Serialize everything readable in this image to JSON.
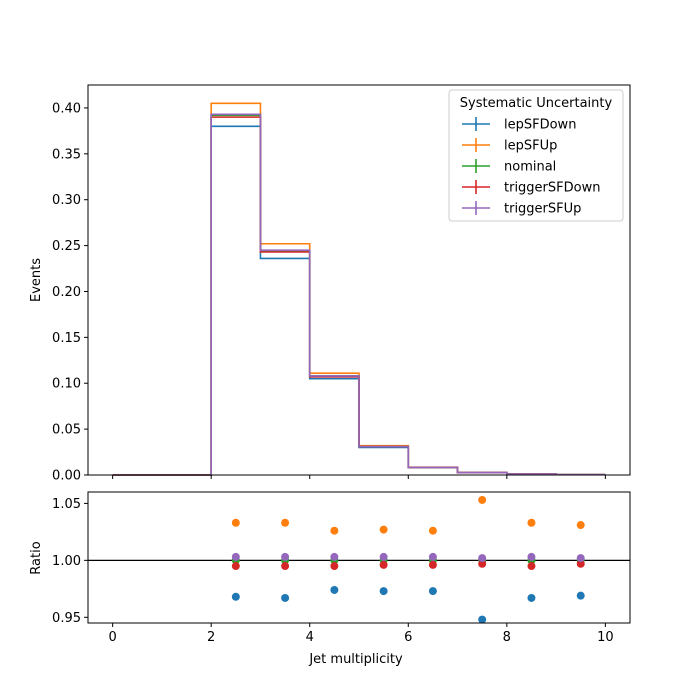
{
  "colors": {
    "lepSFDown": "#1f77b4",
    "lepSFUp": "#ff7f0e",
    "nominal": "#2ca02c",
    "triggerSFDown": "#d62728",
    "triggerSFUp": "#9467bd"
  },
  "chart_data": [
    {
      "type": "line",
      "subtype": "step-histogram",
      "title": "",
      "xlabel": "",
      "ylabel": "Events",
      "bin_edges": [
        0,
        1,
        2,
        3,
        4,
        5,
        6,
        7,
        8,
        9,
        10
      ],
      "xlim": [
        -0.5,
        10.5
      ],
      "ylim": [
        0,
        0.425
      ],
      "yticks": [
        0.0,
        0.05,
        0.1,
        0.15,
        0.2,
        0.25,
        0.3,
        0.35,
        0.4
      ],
      "ytick_labels": [
        "0.00",
        "0.05",
        "0.10",
        "0.15",
        "0.20",
        "0.25",
        "0.30",
        "0.35",
        "0.40"
      ],
      "xticks": [
        0,
        2,
        4,
        6,
        8,
        10
      ],
      "legend": {
        "title": "Systematic Uncertainty",
        "placement": "top-right"
      },
      "series": [
        {
          "name": "lepSFDown",
          "values": [
            0,
            0,
            0.38,
            0.236,
            0.105,
            0.03,
            0.008,
            0.0025,
            0.001,
            0.0003
          ]
        },
        {
          "name": "lepSFUp",
          "values": [
            0,
            0,
            0.405,
            0.252,
            0.111,
            0.032,
            0.0085,
            0.0027,
            0.0011,
            0.0003
          ]
        },
        {
          "name": "nominal",
          "values": [
            0,
            0,
            0.392,
            0.244,
            0.108,
            0.031,
            0.0082,
            0.0026,
            0.001,
            0.0003
          ]
        },
        {
          "name": "triggerSFDown",
          "values": [
            0,
            0,
            0.39,
            0.243,
            0.107,
            0.031,
            0.0082,
            0.0026,
            0.001,
            0.0003
          ]
        },
        {
          "name": "triggerSFUp",
          "values": [
            0,
            0,
            0.393,
            0.245,
            0.108,
            0.031,
            0.0082,
            0.0026,
            0.001,
            0.0003
          ]
        }
      ]
    },
    {
      "type": "scatter",
      "title": "",
      "xlabel": "Jet multiplicity",
      "ylabel": "Ratio",
      "xlim": [
        -0.5,
        10.5
      ],
      "ylim": [
        0.945,
        1.06
      ],
      "xticks": [
        0,
        2,
        4,
        6,
        8,
        10
      ],
      "xtick_labels": [
        "0",
        "2",
        "4",
        "6",
        "8",
        "10"
      ],
      "yticks": [
        0.95,
        1.0,
        1.05
      ],
      "ytick_labels": [
        "0.95",
        "1.00",
        "1.05"
      ],
      "reference_line": 1.0,
      "x": [
        2.5,
        3.5,
        4.5,
        5.5,
        6.5,
        7.5,
        8.5,
        9.5
      ],
      "series": [
        {
          "name": "lepSFDown",
          "values": [
            0.968,
            0.967,
            0.974,
            0.973,
            0.973,
            0.948,
            0.967,
            0.969
          ]
        },
        {
          "name": "lepSFUp",
          "values": [
            1.033,
            1.033,
            1.026,
            1.027,
            1.026,
            1.053,
            1.033,
            1.031
          ]
        },
        {
          "name": "nominal",
          "values": [
            1.0,
            1.0,
            1.0,
            1.0,
            1.0,
            1.0,
            1.0,
            1.0
          ]
        },
        {
          "name": "triggerSFDown",
          "values": [
            0.995,
            0.995,
            0.995,
            0.996,
            0.996,
            0.997,
            0.995,
            0.997
          ]
        },
        {
          "name": "triggerSFUp",
          "values": [
            1.003,
            1.003,
            1.003,
            1.003,
            1.003,
            1.002,
            1.003,
            1.002
          ]
        }
      ]
    }
  ]
}
